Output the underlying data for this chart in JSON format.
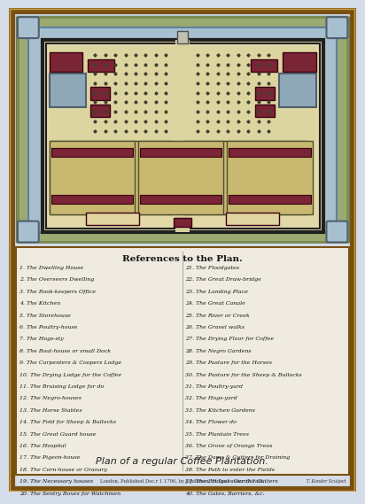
{
  "bg_color": "#d4dce8",
  "outer_border_color": "#8B6914",
  "inner_bg": "#c8d4e0",
  "map_bg": "#e8dfc0",
  "plantation_bg": "#c8b870",
  "dark_red": "#7a2535",
  "blue_gray": "#8fa8b8",
  "canal_color": "#a0b8c8",
  "road_color": "#e0d8b0",
  "green_strip": "#8a9a60",
  "outer_strip": "#9aaa70",
  "title": "References to the Plan.",
  "subtitle": "Plan of a regular Coffee Plantation.",
  "publisher_line": "London, Published Dec.r 1 1796, by J. Johnson, St Paul's Church Yard.",
  "refs_left": [
    "1. The Dwelling House",
    "2. The Overseers Dwelling",
    "3. The Book-keepers Office",
    "4. The Kitchen",
    "5. The Storehouse",
    "6. The Poultry-house",
    "7. The Hogs-sty",
    "8. The Boat-house or small Dock",
    "9. The Carpenters & Coopers Lodge",
    "10. The Drying Lodge for the Coffee",
    "11. The Bruising Lodge for do",
    "12. The Negro-houses",
    "13. The Horse Stables",
    "14. The Fold for Sheep & Bullocks",
    "15. The Great Guard house",
    "16. The Hospital",
    "17. The Pigeon-house",
    "18. The Corn-house or Granary",
    "19. The Necessary houses",
    "20. The Sentry Boxes for Watchmen"
  ],
  "refs_right": [
    "21. The Floodgates",
    "22. The Great Draw-bridge",
    "23. The Landing Place",
    "24. The Great Canale",
    "25. The River or Creek",
    "26. The Gravel walks",
    "27. The Drying Floor for Coffee",
    "28. The Negro Gardens",
    "29. The Pasture for the Horses",
    "30. The Pasture for the Sheep & Bullocks",
    "31. The Poultry-yard",
    "32. The Hogs-yard",
    "33. The Kitchen Gardens",
    "34. The Flower do",
    "35. The Plantain Trees",
    "36. The Grove of Orange Trees",
    "37. The Dams & Gutters for Draining",
    "38. The Path to enter the Fields",
    "39. The Bridges over the Gutters",
    "40. The Gates, Barriers, &c."
  ]
}
